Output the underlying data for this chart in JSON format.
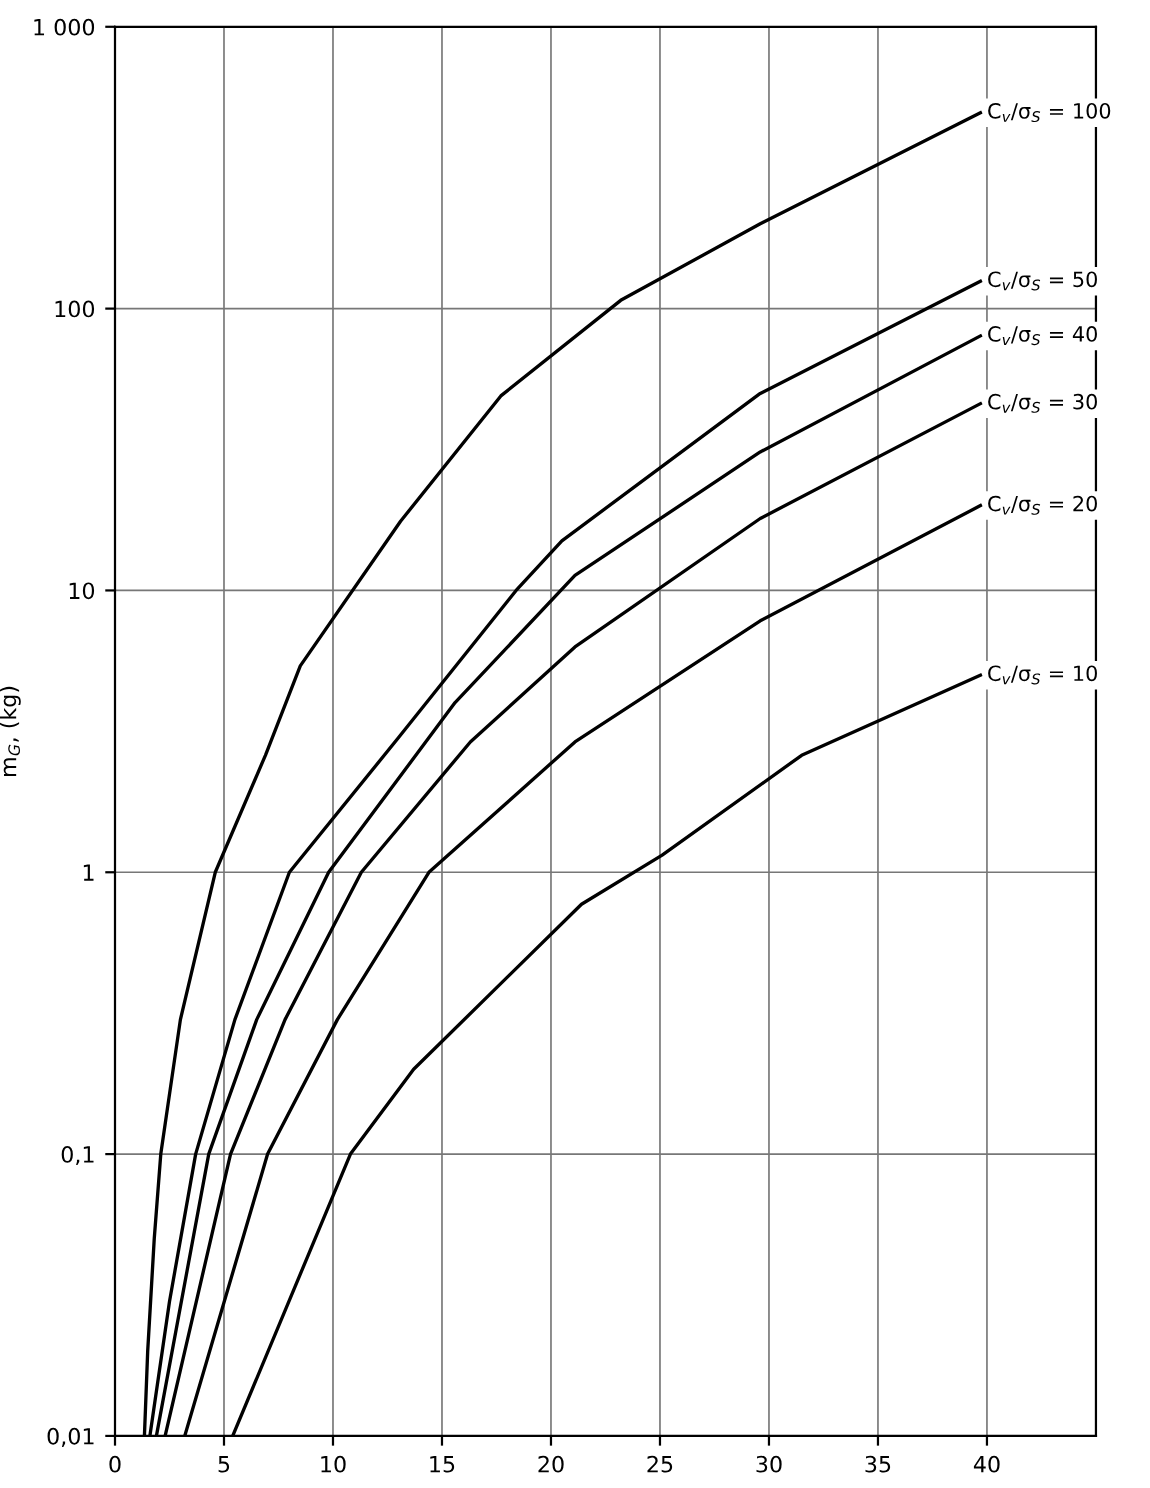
{
  "chart_data": {
    "type": "line",
    "ylabel": "m$_{G}$, (kg)",
    "log": "y",
    "xlim": [
      0,
      45
    ],
    "ylim": [
      0.01,
      1000
    ],
    "xticks": [
      0,
      5,
      10,
      15,
      20,
      25,
      30,
      35,
      40
    ],
    "yticks": [
      {
        "value": 0.01,
        "label": "0,01"
      },
      {
        "value": 0.1,
        "label": "0,1"
      },
      {
        "value": 1,
        "label": "1"
      },
      {
        "value": 10,
        "label": "10"
      },
      {
        "value": 100,
        "label": "100"
      },
      {
        "value": 1000,
        "label": "1 000"
      }
    ],
    "grid": true,
    "legend": false,
    "marker": "none",
    "line_style": "solid",
    "series": [
      {
        "name": "C$_{v}$/σ$_{S}$ = 100",
        "color": "#000000",
        "x": [
          1.35,
          1.5,
          1.8,
          2.1,
          3.0,
          4.6,
          6.9,
          8.5,
          13.1,
          17.7,
          23.2,
          29.6,
          39.7
        ],
        "values": [
          0.01,
          0.02,
          0.05,
          0.1,
          0.3,
          1,
          2.6,
          5.4,
          17.6,
          49,
          107,
          200,
          495
        ]
      },
      {
        "name": "C$_{v}$/σ$_{S}$ = 50",
        "color": "#000000",
        "x": [
          1.6,
          2.5,
          3.7,
          5.5,
          8.0,
          13,
          18.4,
          20.5,
          29.6,
          39.7
        ],
        "values": [
          0.01,
          0.03,
          0.1,
          0.3,
          1,
          3.0,
          10,
          15,
          50,
          125
        ]
      },
      {
        "name": "C$_{v}$/σ$_{S}$ = 40",
        "color": "#000000",
        "x": [
          1.9,
          4.3,
          6.5,
          9.8,
          15.6,
          21.1,
          29.6,
          39.7
        ],
        "values": [
          0.01,
          0.1,
          0.3,
          1,
          4.0,
          11.3,
          31,
          80
        ]
      },
      {
        "name": "C$_{v}$/σ$_{S}$ = 30",
        "color": "#000000",
        "x": [
          2.3,
          5.3,
          7.8,
          11.3,
          16.3,
          21.1,
          29.6,
          39.7
        ],
        "values": [
          0.01,
          0.1,
          0.3,
          1,
          2.9,
          6.3,
          18,
          46
        ]
      },
      {
        "name": "C$_{v}$/σ$_{S}$ = 20",
        "color": "#000000",
        "x": [
          3.2,
          7.0,
          10.2,
          14.4,
          21.1,
          29.6,
          39.7
        ],
        "values": [
          0.01,
          0.1,
          0.3,
          1,
          2.9,
          7.8,
          20
        ]
      },
      {
        "name": "C$_{v}$/σ$_{S}$ = 10",
        "color": "#000000",
        "x": [
          5.4,
          10.8,
          13.7,
          21.4,
          25.1,
          31.5,
          39.7
        ],
        "values": [
          0.01,
          0.1,
          0.2,
          0.77,
          1.15,
          2.6,
          5.0
        ]
      }
    ]
  }
}
